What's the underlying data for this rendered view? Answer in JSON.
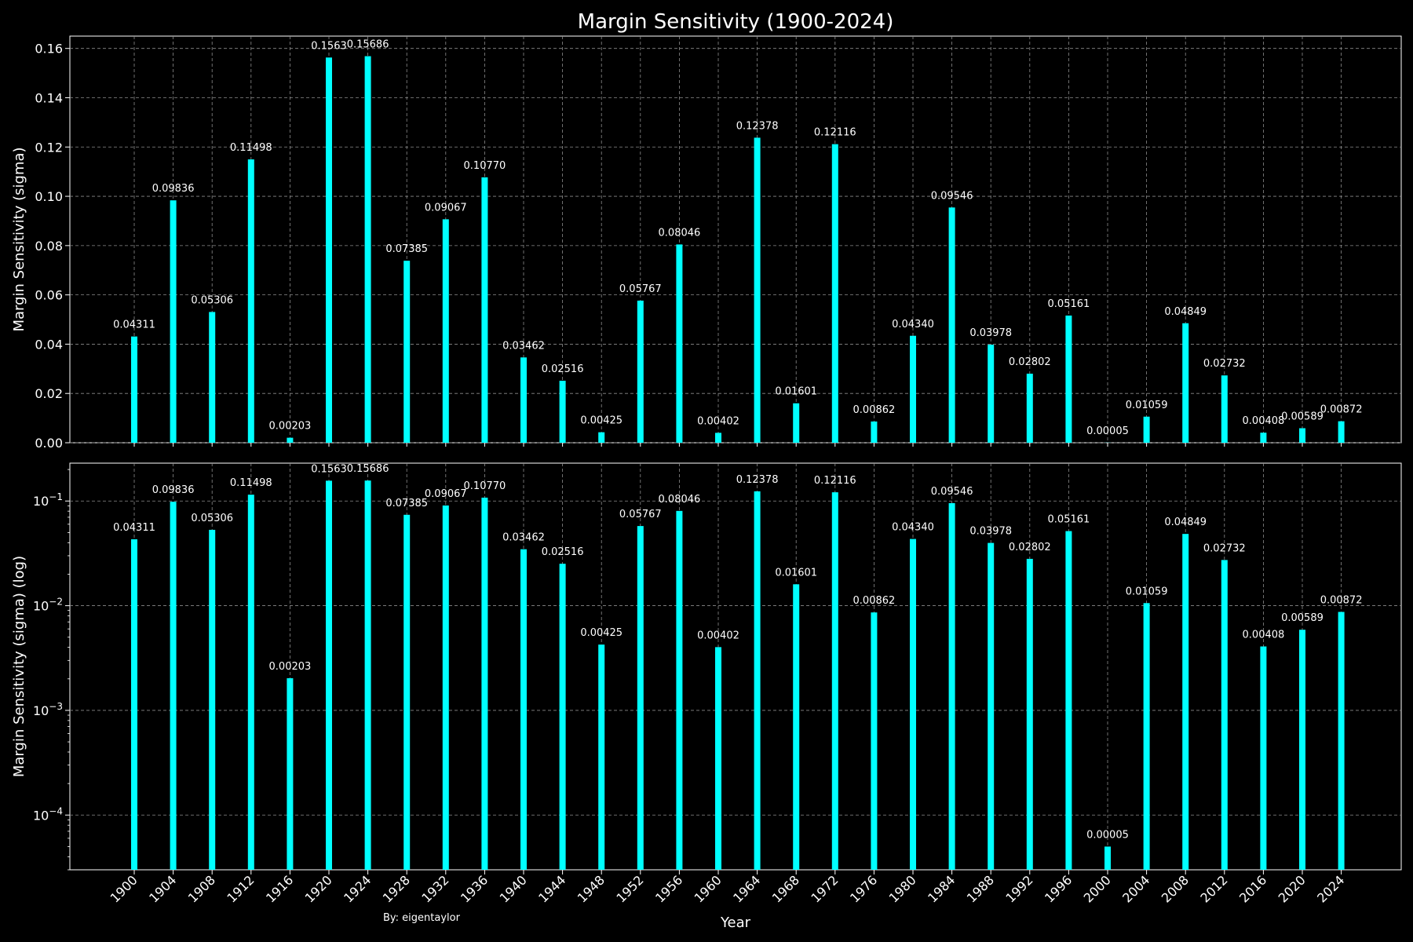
{
  "chart_data": {
    "type": "bar",
    "title": "Margin Sensitivity (1900-2024)",
    "xlabel": "Year",
    "credit": "By: eigentaylor",
    "bar_color": "#00ffff",
    "background": "#000000",
    "grid": true,
    "categories": [
      "1900",
      "1904",
      "1908",
      "1912",
      "1916",
      "1920",
      "1924",
      "1928",
      "1932",
      "1936",
      "1940",
      "1944",
      "1948",
      "1952",
      "1956",
      "1960",
      "1964",
      "1968",
      "1972",
      "1976",
      "1980",
      "1984",
      "1988",
      "1992",
      "1996",
      "2000",
      "2004",
      "2008",
      "2012",
      "2016",
      "2020",
      "2024"
    ],
    "values": [
      0.04311,
      0.09836,
      0.05306,
      0.11498,
      0.00203,
      0.15631,
      0.15686,
      0.07385,
      0.09067,
      0.1077,
      0.03462,
      0.02516,
      0.00425,
      0.05767,
      0.08046,
      0.00402,
      0.12378,
      0.01601,
      0.12116,
      0.00862,
      0.0434,
      0.09546,
      0.03978,
      0.02802,
      0.05161,
      5e-05,
      0.01059,
      0.04849,
      0.02732,
      0.00408,
      0.00589,
      0.00872
    ],
    "labels": [
      "0.04311",
      "0.09836",
      "0.05306",
      "0.11498",
      "0.00203",
      "0.1563",
      "0.15686",
      "0.07385",
      "0.09067",
      "0.10770",
      "0.03462",
      "0.02516",
      "0.00425",
      "0.05767",
      "0.08046",
      "0.00402",
      "0.12378",
      "0.01601",
      "0.12116",
      "0.00862",
      "0.04340",
      "0.09546",
      "0.03978",
      "0.02802",
      "0.05161",
      "0.00005",
      "0.01059",
      "0.04849",
      "0.02732",
      "0.00408",
      "0.00589",
      "0.00872"
    ],
    "panels": [
      {
        "ylabel": "Margin Sensitivity (sigma)",
        "scale": "linear",
        "ylim": [
          0,
          0.165
        ],
        "yticks": [
          0,
          0.02,
          0.04,
          0.06,
          0.08,
          0.1,
          0.12,
          0.14,
          0.16
        ],
        "ytick_labels": [
          "0.00",
          "0.02",
          "0.04",
          "0.06",
          "0.08",
          "0.10",
          "0.12",
          "0.14",
          "0.16"
        ]
      },
      {
        "ylabel": "Margin Sensitivity (sigma) (log)",
        "scale": "log",
        "ylim": [
          3e-05,
          0.23
        ],
        "yticks": [
          0.0001,
          0.001,
          0.01,
          0.1
        ],
        "ytick_labels": [
          {
            "base": "10",
            "exp": "−4"
          },
          {
            "base": "10",
            "exp": "−3"
          },
          {
            "base": "10",
            "exp": "−2"
          },
          {
            "base": "10",
            "exp": "−1"
          }
        ]
      }
    ]
  }
}
